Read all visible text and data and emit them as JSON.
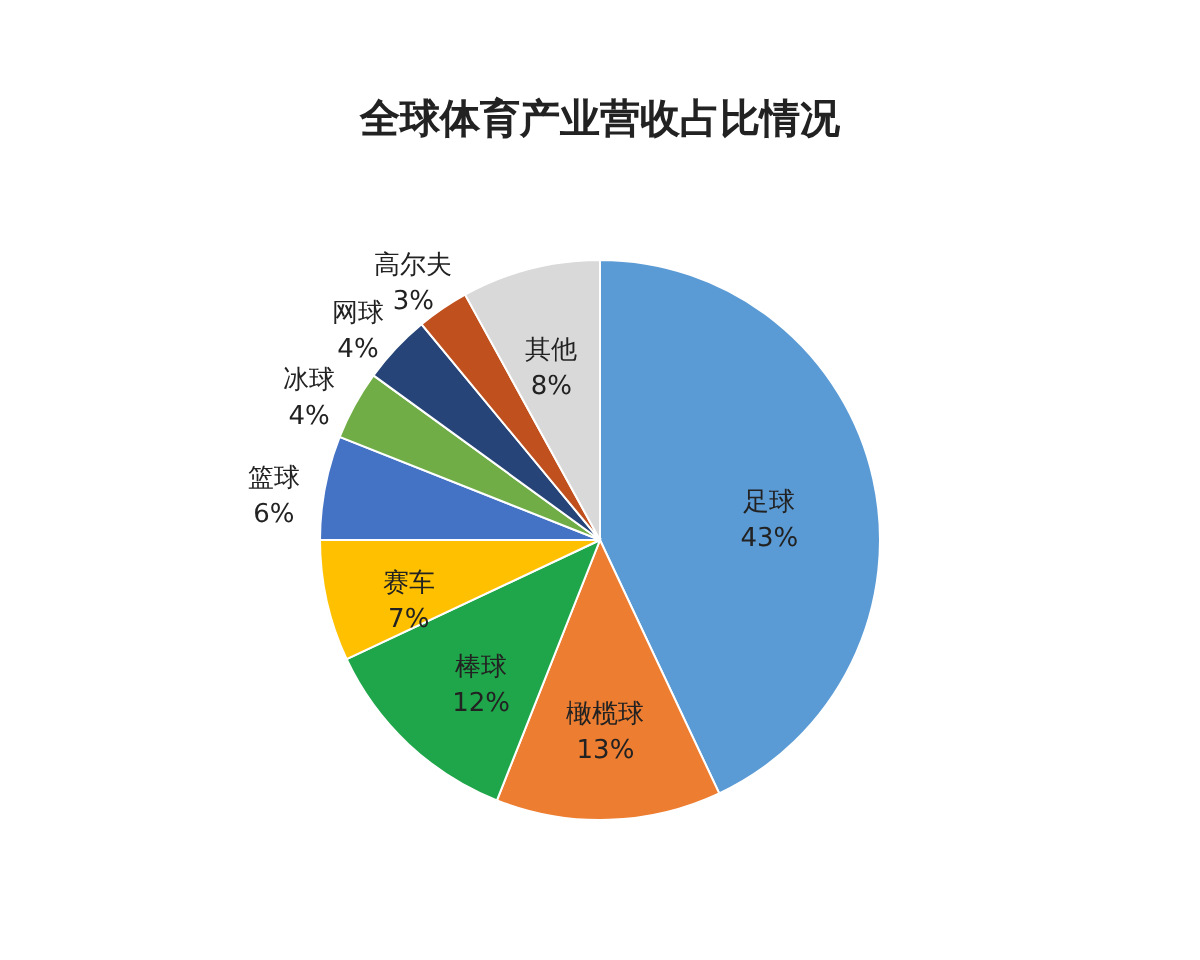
{
  "chart_data": {
    "type": "pie",
    "title": "全球体育产业营收占比情况",
    "categories": [
      "足球",
      "橄榄球",
      "棒球",
      "赛车",
      "篮球",
      "冰球",
      "网球",
      "高尔夫",
      "其他"
    ],
    "values": [
      43,
      13,
      12,
      7,
      6,
      4,
      4,
      3,
      8
    ],
    "value_labels": [
      "43%",
      "13%",
      "12%",
      "7%",
      "6%",
      "4%",
      "4%",
      "3%",
      "8%"
    ],
    "colors": [
      "#5b9bd5",
      "#ed7d31",
      "#1fa64a",
      "#ffc000",
      "#4472c4",
      "#70ad47",
      "#264478",
      "#c0501e",
      "#d9d9d9"
    ],
    "legend": false
  }
}
